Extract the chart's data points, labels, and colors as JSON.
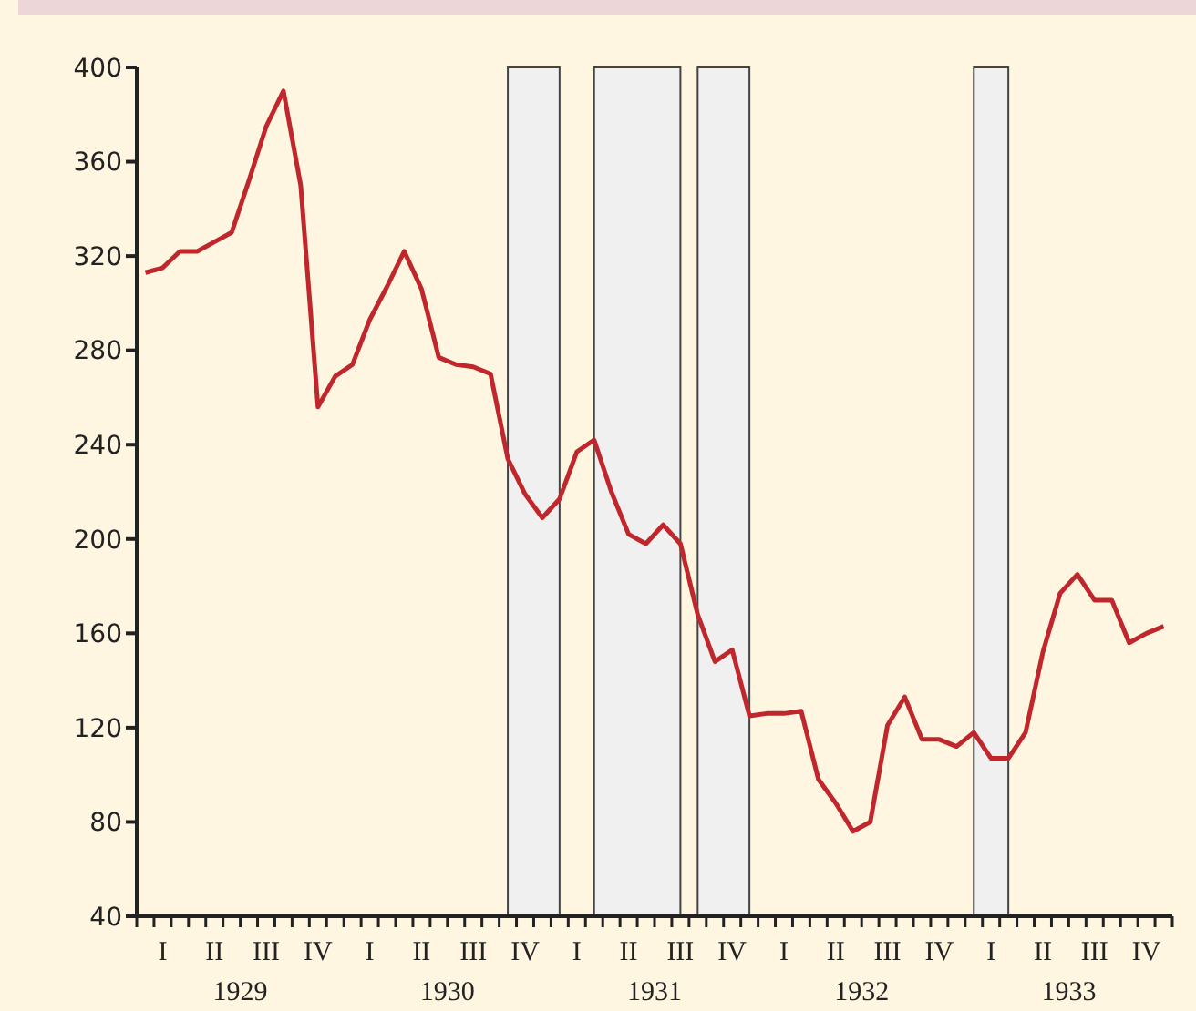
{
  "chart_data": {
    "type": "line",
    "categories": [
      null,
      "I",
      null,
      null,
      "II",
      null,
      null,
      "III",
      null,
      null,
      "IV",
      null,
      null,
      "I",
      null,
      null,
      "II",
      null,
      null,
      "III",
      null,
      null,
      "IV",
      null,
      null,
      "I",
      null,
      null,
      "II",
      null,
      null,
      "III",
      null,
      null,
      "IV",
      null,
      null,
      "I",
      null,
      null,
      "II",
      null,
      null,
      "III",
      null,
      null,
      "IV",
      null,
      null,
      "I",
      null,
      null,
      "II",
      null,
      null,
      "III",
      null,
      null,
      "IV",
      null
    ],
    "series": [
      {
        "color": "#c0272d",
        "values": [
          313,
          315,
          322,
          322,
          326,
          330,
          352,
          375,
          390,
          350,
          256,
          269,
          274,
          293,
          307,
          322,
          306,
          277,
          274,
          273,
          270,
          234,
          219,
          209,
          217,
          237,
          242,
          220,
          202,
          198,
          206,
          198,
          168,
          148,
          153,
          125,
          126,
          126,
          127,
          98,
          88,
          76,
          80,
          121,
          133,
          115,
          115,
          112,
          118,
          107,
          107,
          118,
          152,
          177,
          185,
          174,
          174,
          156,
          160,
          163
        ]
      }
    ],
    "ylim": [
      40,
      400
    ],
    "yticks": [
      40,
      80,
      120,
      160,
      200,
      240,
      280,
      320,
      360,
      400
    ],
    "annotations": [
      "1929",
      "1930",
      "1931",
      "1932",
      "1933"
    ]
  }
}
